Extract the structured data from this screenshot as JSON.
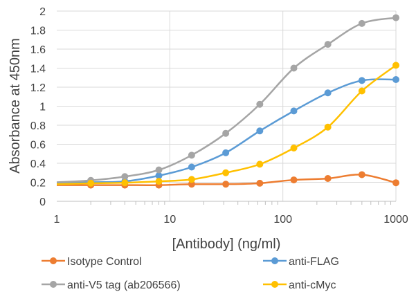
{
  "chart_data": {
    "type": "line",
    "xlabel": "[Antibody] (ng/ml)",
    "ylabel": "Absorbance at 450nm",
    "xscale": "log",
    "xlim": [
      1,
      1000
    ],
    "ylim": [
      0,
      2
    ],
    "xticks": [
      "1",
      "10",
      "100",
      "1000"
    ],
    "yticks": [
      "0",
      "0.2",
      "0.4",
      "0.6",
      "0.8",
      "1",
      "1.2",
      "1.4",
      "1.6",
      "1.8",
      "2"
    ],
    "grid": true,
    "legend": "bottom",
    "x": [
      1,
      2,
      4,
      8,
      15.6,
      31.25,
      62.5,
      125,
      250,
      500,
      1000
    ],
    "series": [
      {
        "name": "Isotype Control",
        "color": "#ED7D31",
        "values": [
          0.17,
          0.17,
          0.17,
          0.17,
          0.18,
          0.18,
          0.19,
          0.225,
          0.24,
          0.28,
          0.195
        ]
      },
      {
        "name": "anti-FLAG",
        "color": "#5B9BD5",
        "values": [
          0.19,
          0.2,
          0.21,
          0.27,
          0.36,
          0.51,
          0.74,
          0.95,
          1.14,
          1.27,
          1.28
        ]
      },
      {
        "name": "anti-V5 tag (ab206566)",
        "color": "#A5A5A5",
        "values": [
          0.2,
          0.22,
          0.26,
          0.33,
          0.485,
          0.715,
          1.02,
          1.4,
          1.65,
          1.87,
          1.93
        ]
      },
      {
        "name": "anti-cMyc",
        "color": "#FFC000",
        "values": [
          0.18,
          0.19,
          0.195,
          0.21,
          0.23,
          0.3,
          0.39,
          0.56,
          0.78,
          1.16,
          1.43
        ]
      }
    ]
  }
}
